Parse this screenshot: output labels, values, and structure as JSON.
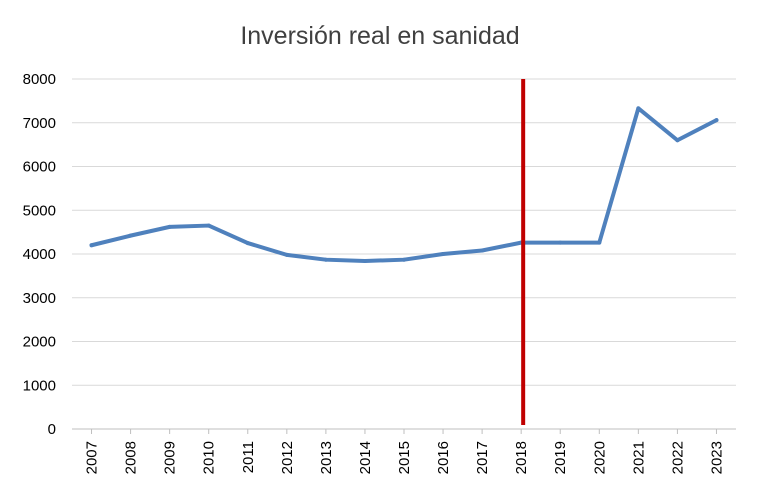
{
  "chart_data": {
    "type": "line",
    "title": "Inversión real en sanidad",
    "xlabel": "",
    "ylabel": "",
    "categories": [
      "2007",
      "2008",
      "2009",
      "2010",
      "2011",
      "2012",
      "2013",
      "2014",
      "2015",
      "2016",
      "2017",
      "2018",
      "2019",
      "2020",
      "2021",
      "2022",
      "2023"
    ],
    "series": [
      {
        "values": [
          4200,
          4420,
          4620,
          4650,
          4250,
          3980,
          3870,
          3840,
          3870,
          4000,
          4080,
          4260,
          4260,
          4260,
          7330,
          6600,
          7060
        ],
        "color": "#4f81bd"
      }
    ],
    "ylim": [
      0,
      8000
    ],
    "yticks": [
      0,
      1000,
      2000,
      3000,
      4000,
      5000,
      6000,
      7000,
      8000
    ],
    "grid": true,
    "legend": "none",
    "marker_line": {
      "category": "2018",
      "color": "#c00000"
    }
  }
}
